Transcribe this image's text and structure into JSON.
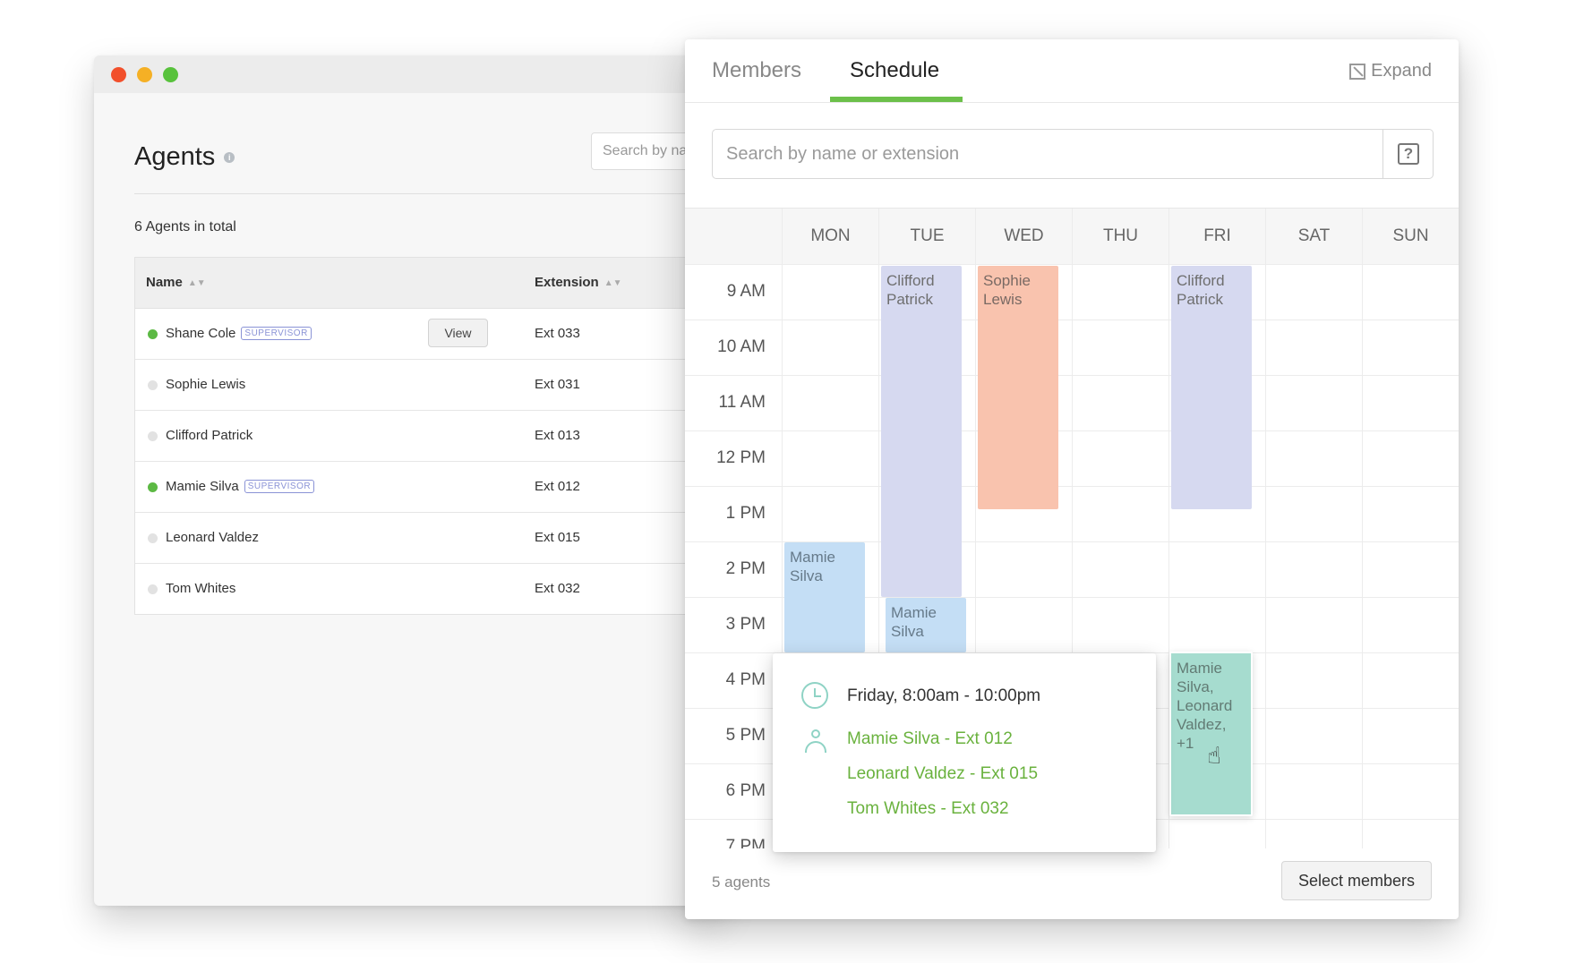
{
  "agents_window": {
    "title": "Agents",
    "search_placeholder": "Search by na",
    "total_text": "6 Agents in total",
    "columns": {
      "name": "Name",
      "extension": "Extension"
    },
    "view_label": "View",
    "rows": [
      {
        "name": "Shane Cole",
        "badge": "SUPERVISOR",
        "ext": "Ext 033",
        "online": true
      },
      {
        "name": "Sophie Lewis",
        "badge": "",
        "ext": "Ext 031",
        "online": false
      },
      {
        "name": "Clifford Patrick",
        "badge": "",
        "ext": "Ext 013",
        "online": false
      },
      {
        "name": "Mamie Silva",
        "badge": "SUPERVISOR",
        "ext": "Ext 012",
        "online": true
      },
      {
        "name": "Leonard Valdez",
        "badge": "",
        "ext": "Ext 015",
        "online": false
      },
      {
        "name": "Tom Whites",
        "badge": "",
        "ext": "Ext 032",
        "online": false
      }
    ]
  },
  "panel": {
    "tabs": [
      "Members",
      "Schedule"
    ],
    "active_tab": "Schedule",
    "expand_label": "Expand",
    "search_placeholder": "Search by name or extension",
    "help_glyph": "?",
    "days": [
      "MON",
      "TUE",
      "WED",
      "THU",
      "FRI",
      "SAT",
      "SUN"
    ],
    "hours": [
      "9 AM",
      "10 AM",
      "11 AM",
      "12 PM",
      "1 PM",
      "2 PM",
      "3 PM",
      "4 PM",
      "5 PM",
      "6 PM",
      "7 PM"
    ],
    "events": {
      "tue_clifford": "Clifford Patrick",
      "wed_sophie": "Sophie Lewis",
      "fri_clifford": "Clifford Patrick",
      "mon_mamie": "Mamie Silva",
      "tue_mamie": "Mamie Silva",
      "fri_group": "Mamie Silva, Leonard Valdez, +1"
    },
    "popover": {
      "time": "Friday, 8:00am - 10:00pm",
      "members": [
        "Mamie Silva - Ext 012",
        "Leonard Valdez - Ext 015",
        "Tom Whites - Ext 032"
      ]
    },
    "footer_count": "5 agents",
    "select_members_label": "Select members"
  },
  "colors": {
    "accent_green": "#6cc04a",
    "event_purple": "#d6d9f0",
    "event_orange": "#f9c3ae",
    "event_blue": "#c4def5",
    "event_teal": "#a6dccf",
    "online_dot": "#5cb944",
    "supervisor_badge": "#8a93d6"
  }
}
